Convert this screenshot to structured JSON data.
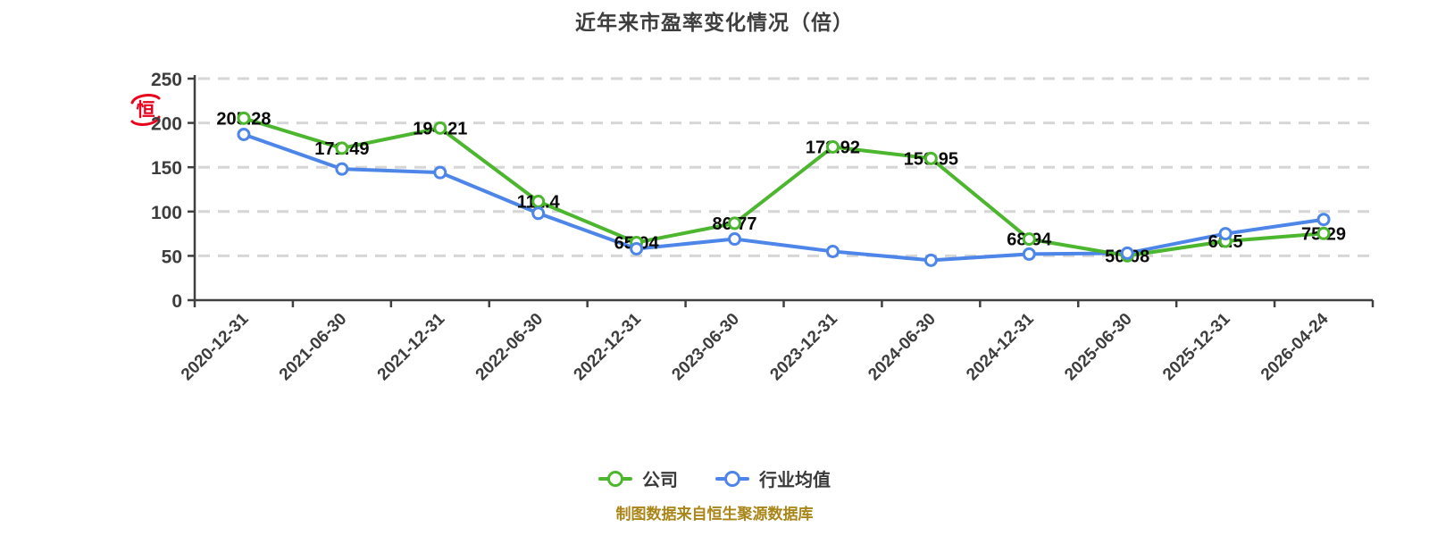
{
  "title": "近年来市盈率变化情况（倍）",
  "seal": {
    "char": "恒",
    "color": "#e8001c"
  },
  "legend": {
    "items": [
      {
        "label": "公司",
        "color": "#4db62f"
      },
      {
        "label": "行业均值",
        "color": "#4d86e8"
      }
    ]
  },
  "footer": {
    "text": "制图数据来自恒生聚源数据库"
  },
  "chart_data": {
    "type": "line",
    "title": "近年来市盈率变化情况（倍）",
    "categories": [
      "2020-12-31",
      "2021-06-30",
      "2021-12-31",
      "2022-06-30",
      "2022-12-31",
      "2023-06-30",
      "2023-12-31",
      "2024-06-30",
      "2024-12-31",
      "2025-06-30",
      "2025-12-31",
      "2026-04-24"
    ],
    "series": [
      {
        "name": "公司",
        "color": "#4db62f",
        "marker": "circle-white-fill",
        "data_labels": true,
        "values": [
          205.28,
          171.49,
          194.21,
          111.4,
          65.04,
          86.77,
          172.92,
          159.95,
          68.94,
          50.08,
          66.5,
          75.29
        ]
      },
      {
        "name": "行业均值",
        "color": "#4d86e8",
        "marker": "circle-white-fill",
        "data_labels": false,
        "values": [
          187,
          148,
          144,
          98,
          58,
          69,
          55,
          45,
          52,
          53,
          75,
          91
        ]
      }
    ],
    "xlabel": "",
    "ylabel": "",
    "ylim": [
      0,
      250
    ],
    "yticks": [
      0,
      50,
      100,
      150,
      200,
      250
    ],
    "x_tick_label_rotation": -45,
    "grid": {
      "horizontal": true,
      "style": "dashed",
      "color": "#d6d6d6"
    },
    "legend_position": "bottom"
  }
}
